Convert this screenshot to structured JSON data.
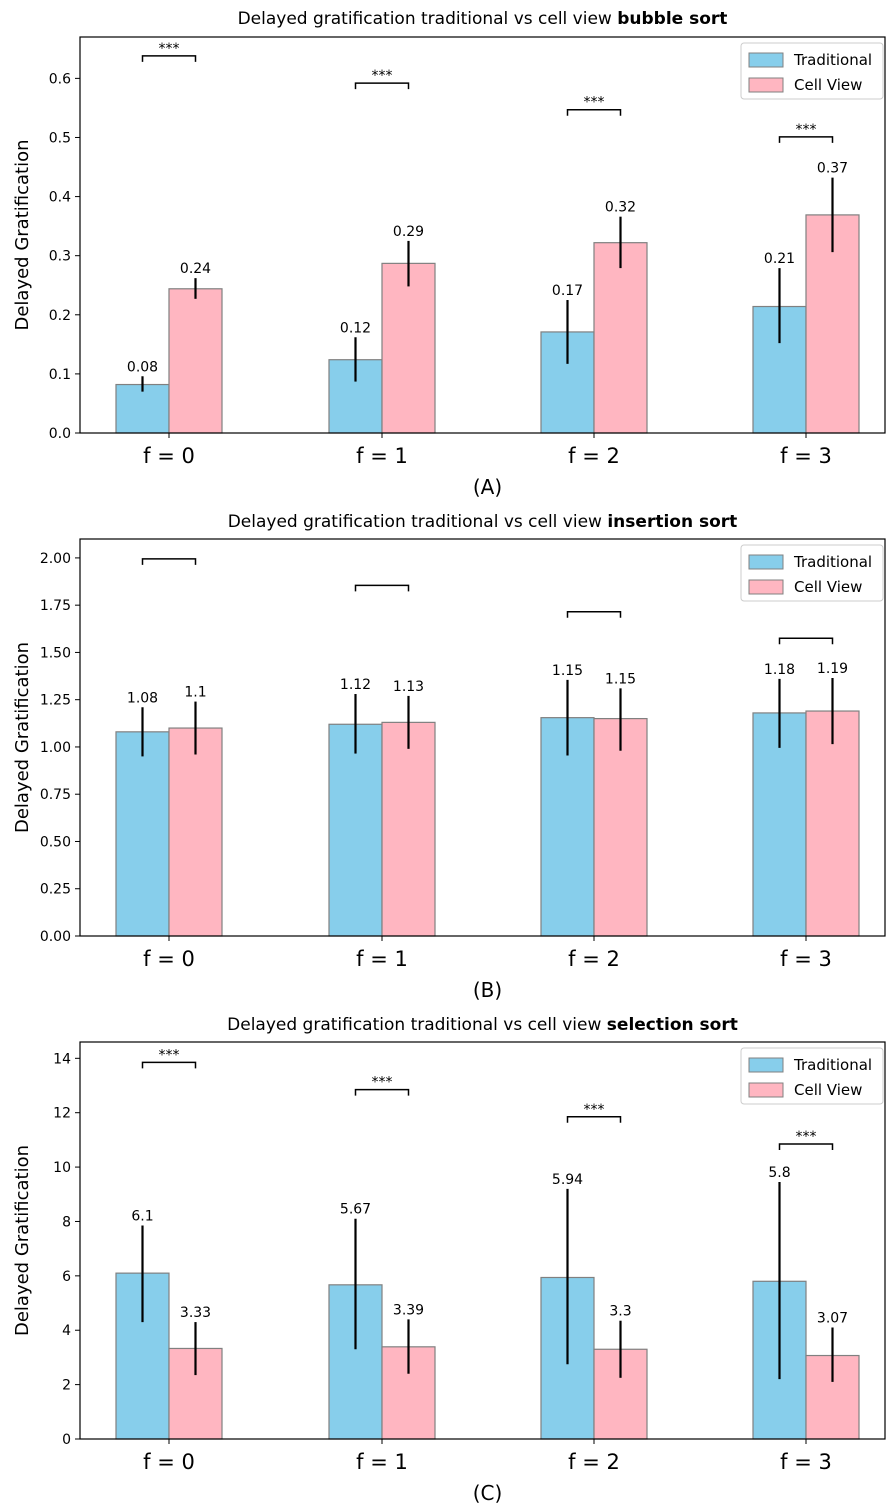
{
  "figure": {
    "colors": {
      "traditional": "#87CEEB",
      "cell_view": "#FFB6C1",
      "bar_edge": "#808080",
      "error_bar": "#000000",
      "axis": "#000000"
    }
  },
  "chart_data": [
    {
      "type": "bar",
      "title_prefix": "Delayed gratification traditional vs cell view ",
      "title_bold": "bubble sort",
      "caption": "(A)",
      "xlabel": "",
      "ylabel": "Delayed Gratification",
      "categories": [
        "f = 0",
        "f = 1",
        "f = 2",
        "f = 3"
      ],
      "ylim": [
        0,
        0.67
      ],
      "yticks": [
        0.0,
        0.1,
        0.2,
        0.3,
        0.4,
        0.5,
        0.6
      ],
      "ytick_labels": [
        "0.0",
        "0.1",
        "0.2",
        "0.3",
        "0.4",
        "0.5",
        "0.6"
      ],
      "legend": {
        "position": "top-right",
        "entries": [
          "Traditional",
          "Cell View"
        ]
      },
      "series": [
        {
          "name": "Traditional",
          "values": [
            0.082,
            0.124,
            0.171,
            0.214
          ],
          "labels": [
            "0.08",
            "0.12",
            "0.17",
            "0.21"
          ],
          "err_low": [
            0.07,
            0.087,
            0.117,
            0.152
          ],
          "err_high": [
            0.096,
            0.162,
            0.225,
            0.279
          ]
        },
        {
          "name": "Cell View",
          "values": [
            0.244,
            0.287,
            0.322,
            0.369
          ],
          "labels": [
            "0.24",
            "0.29",
            "0.32",
            "0.37"
          ],
          "err_low": [
            0.227,
            0.248,
            0.279,
            0.306
          ],
          "err_high": [
            0.262,
            0.325,
            0.366,
            0.432
          ]
        }
      ],
      "significance": {
        "levels": [
          0.638,
          0.592,
          0.547,
          0.501
        ],
        "labels": [
          "***",
          "***",
          "***",
          "***"
        ]
      },
      "grid": false
    },
    {
      "type": "bar",
      "title_prefix": "Delayed gratification traditional vs cell view ",
      "title_bold": "insertion sort",
      "caption": "(B)",
      "xlabel": "",
      "ylabel": "Delayed Gratification",
      "categories": [
        "f = 0",
        "f = 1",
        "f = 2",
        "f = 3"
      ],
      "ylim": [
        0,
        2.1
      ],
      "yticks": [
        0.0,
        0.25,
        0.5,
        0.75,
        1.0,
        1.25,
        1.5,
        1.75,
        2.0
      ],
      "ytick_labels": [
        "0.00",
        "0.25",
        "0.50",
        "0.75",
        "1.00",
        "1.25",
        "1.50",
        "1.75",
        "2.00"
      ],
      "legend": {
        "position": "top-right",
        "entries": [
          "Traditional",
          "Cell View"
        ]
      },
      "series": [
        {
          "name": "Traditional",
          "values": [
            1.08,
            1.12,
            1.155,
            1.18
          ],
          "labels": [
            "1.08",
            "1.12",
            "1.15",
            "1.18"
          ],
          "err_low": [
            0.95,
            0.965,
            0.955,
            0.995
          ],
          "err_high": [
            1.21,
            1.28,
            1.355,
            1.36
          ]
        },
        {
          "name": "Cell View",
          "values": [
            1.1,
            1.13,
            1.15,
            1.19
          ],
          "labels": [
            "1.1",
            "1.13",
            "1.15",
            "1.19"
          ],
          "err_low": [
            0.96,
            0.99,
            0.98,
            1.015
          ],
          "err_high": [
            1.24,
            1.27,
            1.31,
            1.365
          ]
        }
      ],
      "significance": {
        "levels": [
          1.995,
          1.855,
          1.715,
          1.575
        ],
        "labels": [
          "",
          "",
          "",
          ""
        ]
      },
      "grid": false
    },
    {
      "type": "bar",
      "title_prefix": "Delayed gratification traditional vs cell view ",
      "title_bold": "selection sort",
      "caption": "(C)",
      "xlabel": "",
      "ylabel": "Delayed Gratification",
      "categories": [
        "f = 0",
        "f = 1",
        "f = 2",
        "f = 3"
      ],
      "ylim": [
        0,
        14.6
      ],
      "yticks": [
        0,
        2,
        4,
        6,
        8,
        10,
        12,
        14
      ],
      "ytick_labels": [
        "0",
        "2",
        "4",
        "6",
        "8",
        "10",
        "12",
        "14"
      ],
      "legend": {
        "position": "top-right",
        "entries": [
          "Traditional",
          "Cell View"
        ]
      },
      "series": [
        {
          "name": "Traditional",
          "values": [
            6.1,
            5.67,
            5.94,
            5.8
          ],
          "labels": [
            "6.1",
            "5.67",
            "5.94",
            "5.8"
          ],
          "err_low": [
            4.3,
            3.3,
            2.75,
            2.2
          ],
          "err_high": [
            7.85,
            8.1,
            9.2,
            9.45
          ]
        },
        {
          "name": "Cell View",
          "values": [
            3.33,
            3.39,
            3.3,
            3.07
          ],
          "labels": [
            "3.33",
            "3.39",
            "3.3",
            "3.07"
          ],
          "err_low": [
            2.35,
            2.4,
            2.25,
            2.1
          ],
          "err_high": [
            4.3,
            4.4,
            4.35,
            4.1
          ]
        }
      ],
      "significance": {
        "levels": [
          13.85,
          12.85,
          11.85,
          10.85
        ],
        "labels": [
          "***",
          "***",
          "***",
          "***"
        ]
      },
      "grid": false
    }
  ]
}
